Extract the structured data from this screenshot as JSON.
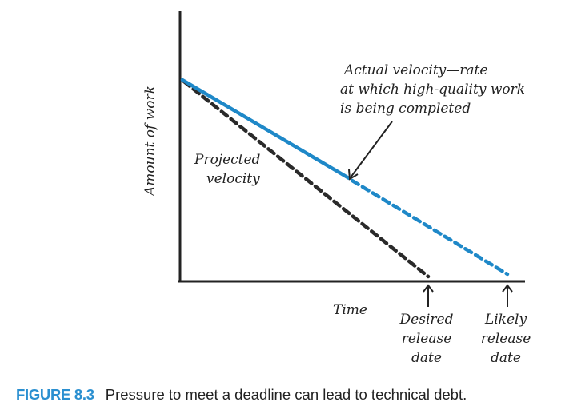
{
  "figure": {
    "axis_y_label": "Amount of work",
    "axis_x_label": "Time",
    "projected_label": [
      "Projected",
      "velocity"
    ],
    "actual_label": [
      "Actual velocity—rate",
      "at which high-quality work",
      "is being completed"
    ],
    "desired_label": [
      "Desired",
      "release",
      "date"
    ],
    "likely_label": [
      "Likely",
      "release",
      "date"
    ],
    "colors": {
      "actual": "#1e88c8",
      "projected": "#2a2a2a",
      "axis": "#222222",
      "caption_accent": "#2a8fd0"
    }
  },
  "caption": {
    "number": "FIGURE 8.3",
    "text": "Pressure to meet a deadline can lead to technical debt."
  }
}
